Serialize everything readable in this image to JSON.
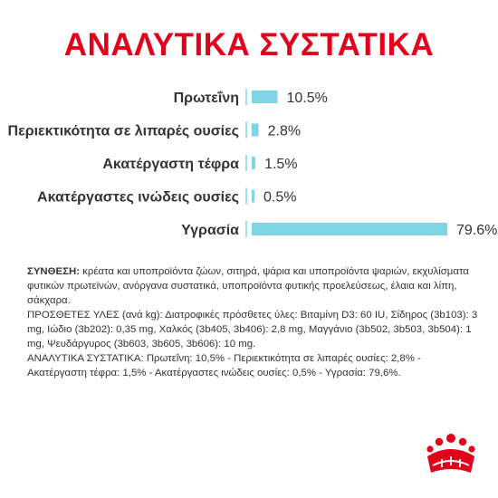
{
  "chart_data": {
    "type": "bar",
    "orientation": "horizontal",
    "title": "ΑΝΑΛΥΤΙΚΑ ΣΥΣΤΑΤΙΚΑ",
    "categories": [
      "Πρωτεΐνη",
      "Περιεκτικότητα σε λιπαρές ουσίες",
      "Ακατέργαστη τέφρα",
      "Ακατέργαστες ινώδεις ουσίες",
      "Υγρασία"
    ],
    "values": [
      10.5,
      2.8,
      1.5,
      0.5,
      79.6
    ],
    "value_labels": [
      "10.5%",
      "2.8%",
      "1.5%",
      "0.5%",
      "79.6%"
    ],
    "unit": "%",
    "xlim": [
      0,
      79.6
    ],
    "grid": false,
    "legend": "none",
    "bar_color": "#7fd4e4",
    "axis_color": "#7fd4e4"
  },
  "title_color": "#e2001a",
  "composition": {
    "synthesis_label": "ΣΥΝΘΕΣΗ:",
    "synthesis_text": " κρέατα και υποπροϊόντα ζώων, σιτηρά, ψάρια και υποπροϊόντα ψαριών, εκχυλίσματα φυτικών πρωτεϊνών, ανόργανα συστατικά, υποπροϊόντα φυτικής προελεύσεως, έλαια και λίπη, σάκχαρα.",
    "additives_text": "ΠΡΟΣΘΕΤΕΣ ΥΛΕΣ (ανά kg): Διατροφικές πρόσθετες ύλες: Βιταμίνη D3: 60 IU, Σίδηρος (3b103): 3 mg, Ιώδιο (3b202): 0,35 mg, Χαλκός (3b405, 3b406): 2,8 mg, Μαγγάνιο (3b502, 3b503, 3b504): 1 mg, Ψευδάργυρος (3b603, 3b605, 3b606): 10 mg.",
    "analysis_text": "ΑΝΑΛΥΤΙΚΑ ΣΥΣΤΑΤΙΚΑ: Πρωτεΐνη: 10,5% - Περιεκτικότητα σε λιπαρές ουσίες: 2,8% - Ακατέργαστη τέφρα: 1,5% - Ακατέργαστες ινώδεις ουσίες: 0,5% - Υγρασία: 79,6%."
  },
  "logo": {
    "icon": "royal-canin-crown-icon",
    "color": "#e2001a"
  }
}
